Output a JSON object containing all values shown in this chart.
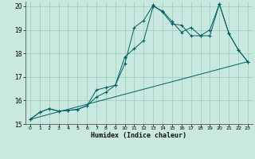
{
  "title": "",
  "xlabel": "Humidex (Indice chaleur)",
  "xlim": [
    -0.5,
    23.5
  ],
  "ylim": [
    15,
    20.2
  ],
  "xticks": [
    0,
    1,
    2,
    3,
    4,
    5,
    6,
    7,
    8,
    9,
    10,
    11,
    12,
    13,
    14,
    15,
    16,
    17,
    18,
    19,
    20,
    21,
    22,
    23
  ],
  "yticks": [
    15,
    16,
    17,
    18,
    19,
    20
  ],
  "bg_color": "#c8e8e0",
  "line_color": "#006060",
  "grid_color": "#99ccbb",
  "line1_x": [
    0,
    1,
    2,
    3,
    4,
    5,
    6,
    7,
    8,
    9,
    10,
    11,
    12,
    13,
    14,
    15,
    16,
    17,
    18,
    19,
    20,
    21,
    22,
    23
  ],
  "line1_y": [
    15.2,
    15.5,
    15.65,
    15.55,
    15.58,
    15.62,
    15.78,
    16.15,
    16.35,
    16.65,
    17.55,
    19.1,
    19.4,
    20.05,
    19.75,
    19.25,
    19.2,
    18.75,
    18.75,
    18.75,
    20.1,
    18.85,
    18.15,
    17.65
  ],
  "line2_x": [
    0,
    1,
    2,
    3,
    4,
    5,
    6,
    7,
    8,
    9,
    10,
    11,
    12,
    13,
    14,
    15,
    16,
    17,
    18,
    19,
    20,
    21,
    22,
    23
  ],
  "line2_y": [
    15.2,
    15.5,
    15.65,
    15.55,
    15.58,
    15.62,
    15.78,
    16.45,
    16.55,
    16.65,
    17.85,
    18.2,
    18.55,
    20.0,
    19.8,
    19.35,
    18.9,
    19.1,
    18.75,
    19.0,
    20.1,
    18.85,
    18.15,
    17.65
  ],
  "line3_x": [
    0,
    23
  ],
  "line3_y": [
    15.2,
    17.65
  ]
}
